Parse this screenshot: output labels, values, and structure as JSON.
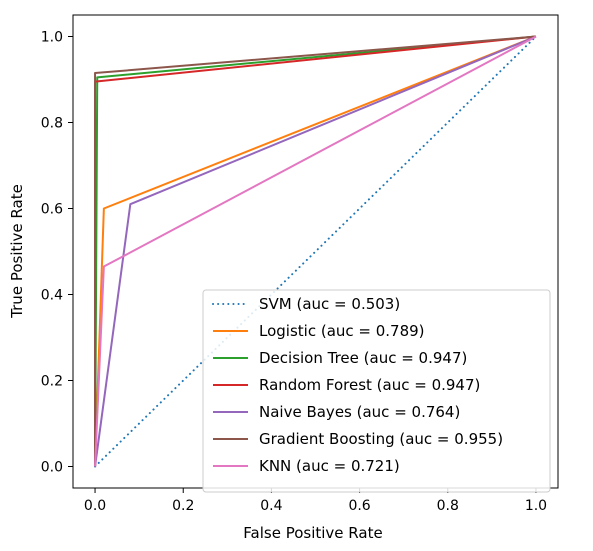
{
  "chart_data": {
    "type": "line",
    "xlabel": "False Positive Rate",
    "ylabel": "True Positive Rate",
    "xlim": [
      -0.05,
      1.05
    ],
    "ylim": [
      -0.05,
      1.05
    ],
    "xticks": [
      "0.0",
      "0.2",
      "0.4",
      "0.6",
      "0.8",
      "1.0"
    ],
    "yticks": [
      "0.0",
      "0.2",
      "0.4",
      "0.6",
      "0.8",
      "1.0"
    ],
    "grid": false,
    "legend_position": "lower-right",
    "series": [
      {
        "name": "SVM (auc = 0.503)",
        "color": "#1f77b4",
        "dash": "dotted",
        "x": [
          0.0,
          1.0
        ],
        "y": [
          0.0,
          1.0
        ]
      },
      {
        "name": "Logistic (auc = 0.789)",
        "color": "#ff7f0e",
        "dash": "solid",
        "x": [
          0.0,
          0.02,
          1.0
        ],
        "y": [
          0.0,
          0.6,
          1.0
        ]
      },
      {
        "name": "Decision Tree (auc = 0.947)",
        "color": "#2ca02c",
        "dash": "solid",
        "x": [
          0.0,
          0.005,
          1.0
        ],
        "y": [
          0.0,
          0.905,
          1.0
        ]
      },
      {
        "name": "Random Forest (auc = 0.947)",
        "color": "#d62728",
        "dash": "solid",
        "x": [
          0.0,
          0.0,
          1.0
        ],
        "y": [
          0.0,
          0.895,
          1.0
        ]
      },
      {
        "name": "Naive Bayes (auc = 0.764)",
        "color": "#9467bd",
        "dash": "solid",
        "x": [
          0.0,
          0.08,
          1.0
        ],
        "y": [
          0.0,
          0.61,
          1.0
        ]
      },
      {
        "name": "Gradient Boosting (auc = 0.955)",
        "color": "#8c564b",
        "dash": "solid",
        "x": [
          0.0,
          0.0,
          1.0
        ],
        "y": [
          0.0,
          0.915,
          1.0
        ]
      },
      {
        "name": "KNN (auc = 0.721)",
        "color": "#e377c2",
        "dash": "solid",
        "x": [
          0.0,
          0.02,
          1.0
        ],
        "y": [
          0.0,
          0.465,
          1.0
        ]
      }
    ]
  }
}
